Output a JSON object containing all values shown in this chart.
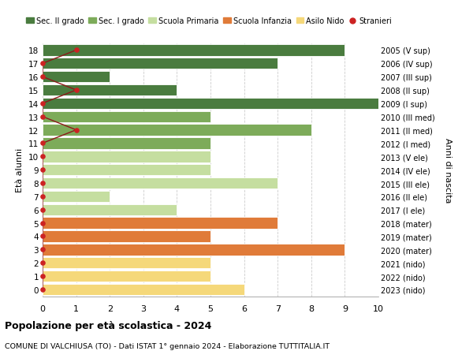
{
  "ages": [
    18,
    17,
    16,
    15,
    14,
    13,
    12,
    11,
    10,
    9,
    8,
    7,
    6,
    5,
    4,
    3,
    2,
    1,
    0
  ],
  "right_labels": [
    "2005 (V sup)",
    "2006 (IV sup)",
    "2007 (III sup)",
    "2008 (II sup)",
    "2009 (I sup)",
    "2010 (III med)",
    "2011 (II med)",
    "2012 (I med)",
    "2013 (V ele)",
    "2014 (IV ele)",
    "2015 (III ele)",
    "2016 (II ele)",
    "2017 (I ele)",
    "2018 (mater)",
    "2019 (mater)",
    "2020 (mater)",
    "2021 (nido)",
    "2022 (nido)",
    "2023 (nido)"
  ],
  "bar_values": [
    9,
    7,
    2,
    4,
    10,
    5,
    8,
    5,
    5,
    5,
    7,
    2,
    4,
    7,
    5,
    9,
    5,
    5,
    6
  ],
  "bar_colors": [
    "#4a7c3f",
    "#4a7c3f",
    "#4a7c3f",
    "#4a7c3f",
    "#4a7c3f",
    "#7dab5a",
    "#7dab5a",
    "#7dab5a",
    "#c5dea0",
    "#c5dea0",
    "#c5dea0",
    "#c5dea0",
    "#c5dea0",
    "#e07b39",
    "#e07b39",
    "#e07b39",
    "#f5d87a",
    "#f5d87a",
    "#f5d87a"
  ],
  "stranieri_x": [
    1,
    0,
    0,
    1,
    0,
    0,
    1,
    0,
    0,
    0,
    0,
    0,
    0,
    0,
    0,
    0,
    0,
    0,
    0
  ],
  "legend_labels": [
    "Sec. II grado",
    "Sec. I grado",
    "Scuola Primaria",
    "Scuola Infanzia",
    "Asilo Nido",
    "Stranieri"
  ],
  "legend_colors": [
    "#4a7c3f",
    "#7dab5a",
    "#c5dea0",
    "#e07b39",
    "#f5d87a",
    "#cc2222"
  ],
  "title_bold": "Popolazione per età scolastica - 2024",
  "subtitle": "COMUNE DI VALCHIUSA (TO) - Dati ISTAT 1° gennaio 2024 - Elaborazione TUTTITALIA.IT",
  "ylabel_left": "Età alunni",
  "ylabel_right": "Anni di nascita",
  "xlim": [
    0,
    10
  ],
  "background_color": "#ffffff",
  "bar_height": 0.85,
  "grid_color": "#cccccc"
}
